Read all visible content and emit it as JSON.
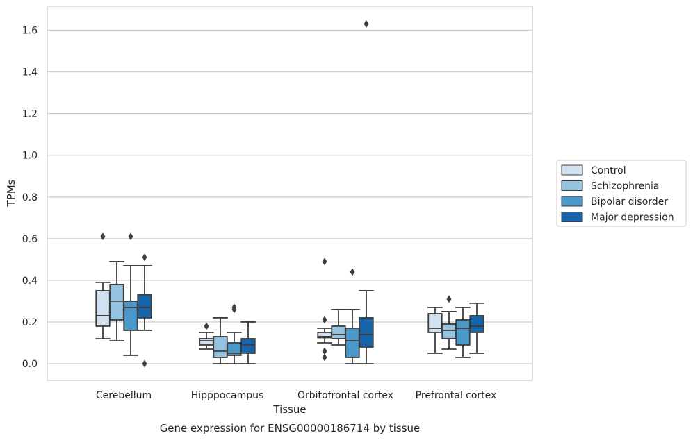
{
  "caption": "Gene expression for ENSG00000186714 by tissue",
  "chart_data": {
    "type": "box",
    "xlabel": "Tissue",
    "ylabel": "TPMs",
    "ylim": [
      -0.08,
      1.72
    ],
    "yticks": [
      0.0,
      0.2,
      0.4,
      0.6,
      0.8,
      1.0,
      1.2,
      1.4,
      1.6
    ],
    "yticklabels": [
      "0.0",
      "0.2",
      "0.4",
      "0.6",
      "0.8",
      "1.0",
      "1.2",
      "1.4",
      "1.6"
    ],
    "categories": [
      "Cerebellum",
      "Hipppocampus",
      "Orbitofrontal cortex",
      "Prefrontal cortex"
    ],
    "grid": "horizontal",
    "legend": {
      "placement": "right",
      "entries": [
        "Control",
        "Schizophrenia",
        "Bipolar disorder",
        "Major depression"
      ]
    },
    "colors": [
      "#d0e1f2",
      "#94c4df",
      "#4a98c9",
      "#1764ab"
    ],
    "edge_color": "#3d3d3d",
    "series": [
      {
        "name": "Control",
        "boxes": [
          {
            "whisker_low": 0.12,
            "q1": 0.18,
            "median": 0.23,
            "q3": 0.35,
            "whisker_high": 0.39,
            "outliers": [
              0.61
            ]
          },
          {
            "whisker_low": 0.07,
            "q1": 0.09,
            "median": 0.11,
            "q3": 0.12,
            "whisker_high": 0.15,
            "outliers": [
              0.18
            ]
          },
          {
            "whisker_low": 0.1,
            "q1": 0.125,
            "median": 0.13,
            "q3": 0.15,
            "whisker_high": 0.17,
            "outliers": [
              0.49,
              0.21,
              0.06,
              0.03
            ]
          },
          {
            "whisker_low": 0.05,
            "q1": 0.15,
            "median": 0.17,
            "q3": 0.24,
            "whisker_high": 0.27,
            "outliers": []
          }
        ]
      },
      {
        "name": "Schizophrenia",
        "boxes": [
          {
            "whisker_low": 0.11,
            "q1": 0.21,
            "median": 0.3,
            "q3": 0.38,
            "whisker_high": 0.49,
            "outliers": []
          },
          {
            "whisker_low": 0.0,
            "q1": 0.03,
            "median": 0.06,
            "q3": 0.13,
            "whisker_high": 0.22,
            "outliers": []
          },
          {
            "whisker_low": 0.09,
            "q1": 0.12,
            "median": 0.14,
            "q3": 0.18,
            "whisker_high": 0.26,
            "outliers": []
          },
          {
            "whisker_low": 0.07,
            "q1": 0.12,
            "median": 0.16,
            "q3": 0.19,
            "whisker_high": 0.25,
            "outliers": [
              0.31
            ]
          }
        ]
      },
      {
        "name": "Bipolar disorder",
        "boxes": [
          {
            "whisker_low": 0.04,
            "q1": 0.16,
            "median": 0.27,
            "q3": 0.3,
            "whisker_high": 0.47,
            "outliers": [
              0.61
            ]
          },
          {
            "whisker_low": 0.0,
            "q1": 0.04,
            "median": 0.05,
            "q3": 0.1,
            "whisker_high": 0.15,
            "outliers": [
              0.27,
              0.26
            ]
          },
          {
            "whisker_low": 0.0,
            "q1": 0.03,
            "median": 0.11,
            "q3": 0.17,
            "whisker_high": 0.26,
            "outliers": [
              0.44
            ]
          },
          {
            "whisker_low": 0.03,
            "q1": 0.09,
            "median": 0.17,
            "q3": 0.21,
            "whisker_high": 0.27,
            "outliers": []
          }
        ]
      },
      {
        "name": "Major depression",
        "boxes": [
          {
            "whisker_low": 0.16,
            "q1": 0.22,
            "median": 0.27,
            "q3": 0.33,
            "whisker_high": 0.47,
            "outliers": [
              0.51,
              0.0
            ]
          },
          {
            "whisker_low": 0.0,
            "q1": 0.05,
            "median": 0.09,
            "q3": 0.12,
            "whisker_high": 0.2,
            "outliers": []
          },
          {
            "whisker_low": 0.0,
            "q1": 0.08,
            "median": 0.14,
            "q3": 0.22,
            "whisker_high": 0.35,
            "outliers": [
              1.63
            ]
          },
          {
            "whisker_low": 0.05,
            "q1": 0.15,
            "median": 0.18,
            "q3": 0.23,
            "whisker_high": 0.29,
            "outliers": []
          }
        ]
      }
    ]
  }
}
